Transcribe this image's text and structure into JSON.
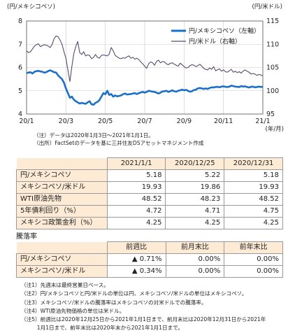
{
  "chart_data": {
    "type": "line",
    "left_axis_label": "(円/メキシコペソ)",
    "right_axis_label": "(円/米ドル)",
    "x_axis_unit": "(年/月)",
    "y_left": {
      "min": 4,
      "max": 8,
      "ticks": [
        "4",
        "5",
        "6",
        "7",
        "8"
      ]
    },
    "y_right": {
      "min": 95,
      "max": 115,
      "ticks": [
        "95",
        "100",
        "105",
        "110",
        "115"
      ]
    },
    "x_ticks": [
      "20/1",
      "20/3",
      "20/5",
      "20/7",
      "20/9",
      "20/11",
      "21/1"
    ],
    "grid": true,
    "legend_position": "top-right",
    "series": [
      {
        "name": "円/メキシコペソ（左軸）",
        "axis": "left",
        "color": "#1a6fc9",
        "points": [
          [
            0,
            5.76
          ],
          [
            0.1,
            5.78
          ],
          [
            0.2,
            5.8
          ],
          [
            0.3,
            5.74
          ],
          [
            0.4,
            5.82
          ],
          [
            0.5,
            5.84
          ],
          [
            0.6,
            5.86
          ],
          [
            0.7,
            5.83
          ],
          [
            0.8,
            5.82
          ],
          [
            0.9,
            5.78
          ],
          [
            1.0,
            5.8
          ],
          [
            1.1,
            5.85
          ],
          [
            1.2,
            5.88
          ],
          [
            1.3,
            5.84
          ],
          [
            1.4,
            5.8
          ],
          [
            1.5,
            5.78
          ],
          [
            1.6,
            5.66
          ],
          [
            1.7,
            5.58
          ],
          [
            1.8,
            5.5
          ],
          [
            1.9,
            5.35
          ],
          [
            2.0,
            5.1
          ],
          [
            2.1,
            4.9
          ],
          [
            2.2,
            4.7
          ],
          [
            2.3,
            4.75
          ],
          [
            2.4,
            4.62
          ],
          [
            2.5,
            4.55
          ],
          [
            2.6,
            4.5
          ],
          [
            2.7,
            4.45
          ],
          [
            2.8,
            4.48
          ],
          [
            2.9,
            4.46
          ],
          [
            3.0,
            4.44
          ],
          [
            3.1,
            4.5
          ],
          [
            3.2,
            4.55
          ],
          [
            3.3,
            4.42
          ],
          [
            3.4,
            4.4
          ],
          [
            3.5,
            4.48
          ],
          [
            3.6,
            4.52
          ],
          [
            3.7,
            4.6
          ],
          [
            3.8,
            4.75
          ],
          [
            3.9,
            4.9
          ],
          [
            4.0,
            4.85
          ],
          [
            4.1,
            5.0
          ],
          [
            4.2,
            4.82
          ],
          [
            4.3,
            4.86
          ],
          [
            4.4,
            4.75
          ],
          [
            4.5,
            4.8
          ],
          [
            4.6,
            4.76
          ],
          [
            4.7,
            4.78
          ],
          [
            4.8,
            4.8
          ],
          [
            4.9,
            4.85
          ],
          [
            5.0,
            4.88
          ],
          [
            5.1,
            4.84
          ],
          [
            5.2,
            4.85
          ],
          [
            5.3,
            4.86
          ],
          [
            5.4,
            4.88
          ],
          [
            5.5,
            4.9
          ],
          [
            5.6,
            4.86
          ],
          [
            5.7,
            4.9
          ],
          [
            5.8,
            4.93
          ],
          [
            5.9,
            4.95
          ],
          [
            6.0,
            4.92
          ],
          [
            6.1,
            4.95
          ],
          [
            6.2,
            5.0
          ],
          [
            6.3,
            4.98
          ],
          [
            6.4,
            4.96
          ],
          [
            6.5,
            4.95
          ],
          [
            6.6,
            4.92
          ],
          [
            6.7,
            4.88
          ],
          [
            6.8,
            4.92
          ],
          [
            6.9,
            4.97
          ],
          [
            7.0,
            4.98
          ],
          [
            7.1,
            5.0
          ],
          [
            7.2,
            4.95
          ],
          [
            7.3,
            4.98
          ],
          [
            7.4,
            5.02
          ],
          [
            7.5,
            4.98
          ],
          [
            7.6,
            4.96
          ],
          [
            7.7,
            5.0
          ],
          [
            7.8,
            5.02
          ],
          [
            7.9,
            5.05
          ],
          [
            8.0,
            5.02
          ],
          [
            8.1,
            5.04
          ],
          [
            8.2,
            5.0
          ],
          [
            8.3,
            4.96
          ],
          [
            8.4,
            4.98
          ],
          [
            8.5,
            5.03
          ],
          [
            8.6,
            5.05
          ],
          [
            8.7,
            5.1
          ],
          [
            8.8,
            5.12
          ],
          [
            8.9,
            5.1
          ],
          [
            9.0,
            5.08
          ],
          [
            9.1,
            5.1
          ],
          [
            9.2,
            5.08
          ],
          [
            9.3,
            5.12
          ],
          [
            9.4,
            5.15
          ],
          [
            9.5,
            5.14
          ],
          [
            9.6,
            5.16
          ],
          [
            9.7,
            5.17
          ],
          [
            9.8,
            5.15
          ],
          [
            9.9,
            5.18
          ],
          [
            10.0,
            5.19
          ],
          [
            10.1,
            5.17
          ],
          [
            10.2,
            5.16
          ],
          [
            10.3,
            5.18
          ],
          [
            10.4,
            5.22
          ],
          [
            10.5,
            5.2
          ],
          [
            10.6,
            5.18
          ],
          [
            10.7,
            5.17
          ],
          [
            10.8,
            5.16
          ],
          [
            10.9,
            5.2
          ],
          [
            11.0,
            5.18
          ],
          [
            11.1,
            5.19
          ],
          [
            11.2,
            5.16
          ],
          [
            11.3,
            5.14
          ],
          [
            11.4,
            5.17
          ],
          [
            11.5,
            5.18
          ],
          [
            11.6,
            5.15
          ],
          [
            11.7,
            5.16
          ],
          [
            11.8,
            5.18
          ],
          [
            11.9,
            5.16
          ],
          [
            12.0,
            5.18
          ]
        ]
      },
      {
        "name": "円/米ドル（右軸）",
        "axis": "right",
        "color": "#5a4a6e",
        "points": [
          [
            0,
            108.6
          ],
          [
            0.1,
            108.2
          ],
          [
            0.2,
            108.4
          ],
          [
            0.3,
            109.0
          ],
          [
            0.4,
            109.6
          ],
          [
            0.5,
            109.9
          ],
          [
            0.6,
            110.1
          ],
          [
            0.7,
            109.5
          ],
          [
            0.8,
            109.7
          ],
          [
            0.9,
            109.9
          ],
          [
            1.0,
            109.8
          ],
          [
            1.1,
            109.6
          ],
          [
            1.2,
            109.3
          ],
          [
            1.3,
            110.0
          ],
          [
            1.4,
            111.2
          ],
          [
            1.5,
            111.8
          ],
          [
            1.6,
            111.6
          ],
          [
            1.7,
            110.9
          ],
          [
            1.8,
            110.0
          ],
          [
            1.9,
            108.4
          ],
          [
            2.0,
            107.0
          ],
          [
            2.1,
            104.4
          ],
          [
            2.2,
            102.0
          ],
          [
            2.3,
            105.2
          ],
          [
            2.4,
            108.0
          ],
          [
            2.5,
            109.5
          ],
          [
            2.6,
            110.6
          ],
          [
            2.7,
            108.2
          ],
          [
            2.8,
            107.8
          ],
          [
            2.9,
            108.4
          ],
          [
            3.0,
            107.5
          ],
          [
            3.1,
            107.7
          ],
          [
            3.2,
            107.6
          ],
          [
            3.3,
            106.9
          ],
          [
            3.4,
            107.2
          ],
          [
            3.5,
            107.8
          ],
          [
            3.6,
            107.2
          ],
          [
            3.7,
            107.0
          ],
          [
            3.8,
            107.6
          ],
          [
            3.9,
            107.7
          ],
          [
            4.0,
            107.6
          ],
          [
            4.1,
            107.5
          ],
          [
            4.2,
            107.9
          ],
          [
            4.3,
            109.3
          ],
          [
            4.4,
            108.6
          ],
          [
            4.5,
            107.6
          ],
          [
            4.6,
            107.3
          ],
          [
            4.7,
            107.0
          ],
          [
            4.8,
            106.9
          ],
          [
            4.9,
            107.1
          ],
          [
            5.0,
            107.0
          ],
          [
            5.1,
            107.3
          ],
          [
            5.2,
            107.5
          ],
          [
            5.3,
            107.0
          ],
          [
            5.4,
            107.2
          ],
          [
            5.5,
            106.8
          ],
          [
            5.6,
            107.0
          ],
          [
            5.7,
            106.7
          ],
          [
            5.8,
            106.2
          ],
          [
            5.9,
            105.8
          ],
          [
            6.0,
            105.3
          ],
          [
            6.1,
            104.8
          ],
          [
            6.2,
            105.8
          ],
          [
            6.3,
            106.2
          ],
          [
            6.4,
            106.0
          ],
          [
            6.5,
            105.5
          ],
          [
            6.6,
            106.3
          ],
          [
            6.7,
            106.6
          ],
          [
            6.8,
            106.0
          ],
          [
            6.9,
            106.3
          ],
          [
            7.0,
            106.2
          ],
          [
            7.1,
            105.8
          ],
          [
            7.2,
            105.6
          ],
          [
            7.3,
            105.9
          ],
          [
            7.4,
            106.0
          ],
          [
            7.5,
            105.7
          ],
          [
            7.6,
            105.5
          ],
          [
            7.7,
            105.3
          ],
          [
            7.8,
            105.9
          ],
          [
            7.9,
            105.6
          ],
          [
            8.0,
            105.2
          ],
          [
            8.1,
            104.9
          ],
          [
            8.2,
            105.0
          ],
          [
            8.3,
            105.4
          ],
          [
            8.4,
            105.6
          ],
          [
            8.5,
            105.5
          ],
          [
            8.6,
            105.2
          ],
          [
            8.7,
            105.4
          ],
          [
            8.8,
            105.7
          ],
          [
            8.9,
            105.3
          ],
          [
            9.0,
            104.8
          ],
          [
            9.1,
            104.6
          ],
          [
            9.2,
            104.5
          ],
          [
            9.3,
            104.9
          ],
          [
            9.4,
            104.6
          ],
          [
            9.5,
            105.2
          ],
          [
            9.6,
            104.3
          ],
          [
            9.7,
            104.5
          ],
          [
            9.8,
            104.7
          ],
          [
            9.9,
            104.2
          ],
          [
            10.0,
            104.5
          ],
          [
            10.1,
            104.1
          ],
          [
            10.2,
            104.0
          ],
          [
            10.3,
            104.3
          ],
          [
            10.4,
            104.6
          ],
          [
            10.5,
            104.0
          ],
          [
            10.6,
            104.2
          ],
          [
            10.7,
            103.9
          ],
          [
            10.8,
            104.1
          ],
          [
            10.9,
            103.8
          ],
          [
            11.0,
            104.2
          ],
          [
            11.1,
            104.5
          ],
          [
            11.2,
            104.2
          ],
          [
            11.3,
            104.0
          ],
          [
            11.4,
            103.6
          ],
          [
            11.5,
            103.7
          ],
          [
            11.6,
            103.6
          ],
          [
            11.7,
            103.3
          ],
          [
            11.8,
            103.5
          ],
          [
            11.9,
            103.4
          ],
          [
            12.0,
            103.2
          ]
        ]
      }
    ]
  },
  "chart_notes": [
    "（注）データは2020年1月3日～2021年1月1日。",
    "（出所）FactSetのデータを基に三井住友DSアセットマネジメント作成"
  ],
  "table1": {
    "headers": [
      "",
      "2021/1/1",
      "2020/12/25",
      "2020/12/31"
    ],
    "rows": [
      [
        "円/メキシコペソ",
        "5.18",
        "5.22",
        "5.18"
      ],
      [
        "メキシコペソ/米ドル",
        "19.93",
        "19.86",
        "19.93"
      ],
      [
        "WTI原油先物",
        "48.52",
        "48.23",
        "48.52"
      ],
      [
        "5年債利回り（%）",
        "4.72",
        "4.71",
        "4.75"
      ],
      [
        "メキシコ政策金利（%）",
        "4.25",
        "4.25",
        "4.25"
      ]
    ]
  },
  "table2": {
    "section_label": "騰落率",
    "headers": [
      "",
      "前週比",
      "前月末比",
      "前年末比"
    ],
    "rows": [
      [
        "円/メキシコペソ",
        "▲ 0.71%",
        "0.00%",
        "0.00%"
      ],
      [
        "メキシコペソ/米ドル",
        "▲ 0.34%",
        "0.00%",
        "0.00%"
      ]
    ]
  },
  "footnotes": [
    "（注1）先週末は最終営業日ベース。",
    "（注2）円/メキシコペソと円/米ドルの単位は円、メキシコペソ/米ドルの単位はメキシコペソ。",
    "（注3）メキシコペソ/米ドルの騰落率はメキシコペソの対米ドルでの騰落率。",
    "（注4）WTI原油先物価格の単位は米ドル。",
    "（注5）前週比は2020年12月25日から2021年1月1日まで、前月末比は2020年12月31日から2021年",
    "　　　1月1日まで、前年末比は2020年末から2021年1月1日まで。"
  ]
}
